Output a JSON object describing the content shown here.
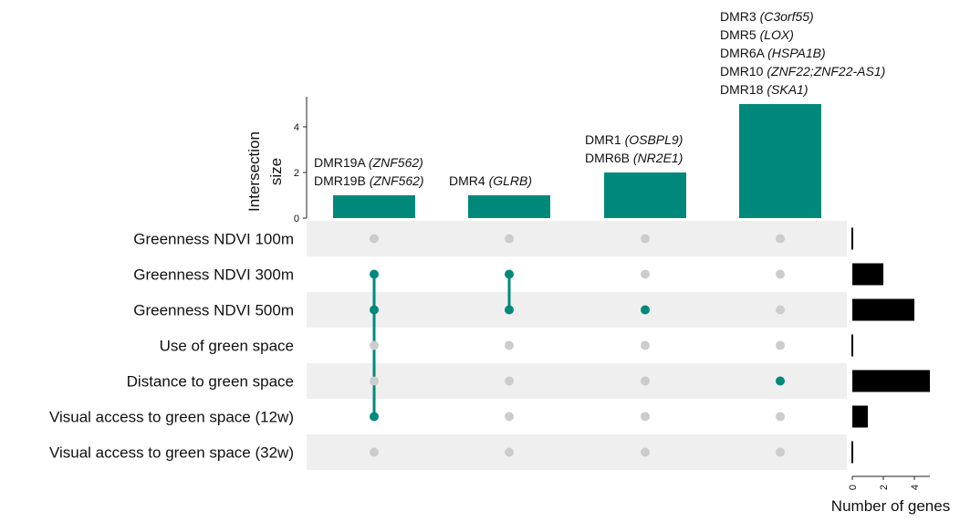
{
  "chart_data": {
    "type": "bar",
    "subtype": "upset",
    "ylabel_lines": [
      "Intersection",
      "size"
    ],
    "yticks": [
      0,
      2,
      4
    ],
    "ylim": [
      0,
      5
    ],
    "xlabel_right": "Number of genes",
    "xticks_right": [
      0,
      2,
      4
    ],
    "xlim_right": [
      0,
      5
    ],
    "sets": [
      {
        "name": "Greenness NDVI 100m",
        "size": 0
      },
      {
        "name": "Greenness NDVI 300m",
        "size": 2
      },
      {
        "name": "Greenness NDVI 500m",
        "size": 4
      },
      {
        "name": "Use of green space",
        "size": 0
      },
      {
        "name": "Distance to green space",
        "size": 5
      },
      {
        "name": "Visual access to green space (12w)",
        "size": 1
      },
      {
        "name": "Visual access to green space (32w)",
        "size": 0
      }
    ],
    "intersections": [
      {
        "value": 1,
        "members": [
          1,
          2,
          5
        ],
        "labels": [
          {
            "plain": "DMR19A ",
            "italic": "(ZNF562)"
          },
          {
            "plain": "DMR19B ",
            "italic": "(ZNF562)"
          }
        ]
      },
      {
        "value": 1,
        "members": [
          1,
          2
        ],
        "labels": [
          {
            "plain": "DMR4 ",
            "italic": "(GLRB)"
          }
        ]
      },
      {
        "value": 2,
        "members": [
          2
        ],
        "labels": [
          {
            "plain": "DMR1 ",
            "italic": "(OSBPL9)"
          },
          {
            "plain": "DMR6B ",
            "italic": "(NR2E1)"
          }
        ]
      },
      {
        "value": 5,
        "members": [
          4
        ],
        "labels": [
          {
            "plain": "DMR3 ",
            "italic": "(C3orf55)"
          },
          {
            "plain": "DMR5 ",
            "italic": "(LOX)"
          },
          {
            "plain": "DMR6A ",
            "italic": "(HSPA1B)"
          },
          {
            "plain": "DMR10 ",
            "italic": "(ZNF22;ZNF22-AS1)"
          },
          {
            "plain": "DMR18 ",
            "italic": "(SKA1)"
          }
        ]
      }
    ],
    "colors": {
      "bar": "#00897b",
      "dot_active": "#00897b",
      "dot_inactive": "#cccccc",
      "stripe": "#efefef",
      "set_bar": "#000000"
    }
  }
}
